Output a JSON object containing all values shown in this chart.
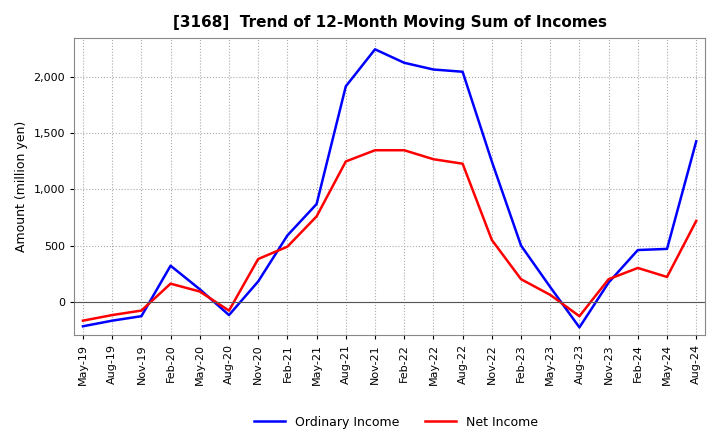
{
  "title": "[3168]  Trend of 12-Month Moving Sum of Incomes",
  "ylabel": "Amount (million yen)",
  "ylim": [
    -300,
    2350
  ],
  "yticks": [
    0,
    500,
    1000,
    1500,
    2000
  ],
  "background_color": "#ffffff",
  "plot_bg_color": "#ffffff",
  "grid_color": "#aaaaaa",
  "ordinary_income_color": "#0000ff",
  "net_income_color": "#ff0000",
  "ordinary_income_label": "Ordinary Income",
  "net_income_label": "Net Income",
  "x_labels": [
    "May-19",
    "Aug-19",
    "Nov-19",
    "Feb-20",
    "May-20",
    "Aug-20",
    "Nov-20",
    "Feb-21",
    "May-21",
    "Aug-21",
    "Nov-21",
    "Feb-22",
    "May-22",
    "Aug-22",
    "Nov-22",
    "Feb-23",
    "May-23",
    "Aug-23",
    "Nov-23",
    "Feb-24",
    "May-24",
    "Aug-24"
  ],
  "ordinary_income": [
    -220,
    -170,
    -130,
    320,
    110,
    -120,
    180,
    590,
    870,
    1920,
    2250,
    2130,
    2070,
    2050,
    1250,
    500,
    130,
    -230,
    170,
    460,
    470,
    1430
  ],
  "net_income": [
    -170,
    -120,
    -80,
    160,
    90,
    -80,
    380,
    490,
    760,
    1250,
    1350,
    1350,
    1270,
    1230,
    550,
    200,
    60,
    -130,
    200,
    300,
    220,
    720
  ]
}
